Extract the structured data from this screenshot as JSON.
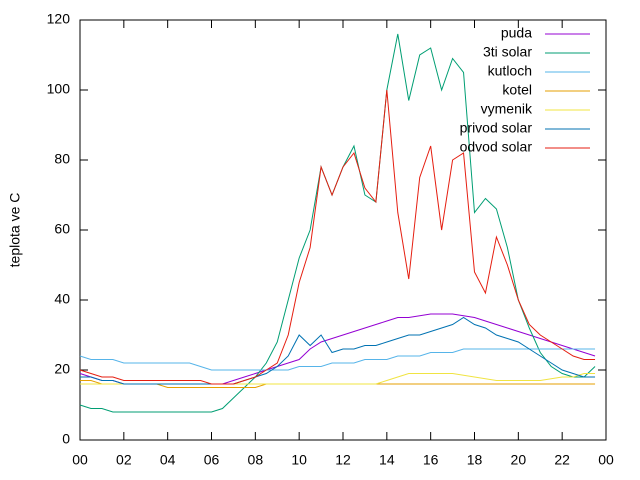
{
  "chart_data": {
    "type": "line",
    "ylabel": "teplota ve C",
    "x": [
      0,
      0.5,
      1,
      1.5,
      2,
      2.5,
      3,
      3.5,
      4,
      4.5,
      5,
      5.5,
      6,
      6.5,
      7,
      7.5,
      8,
      8.5,
      9,
      9.5,
      10,
      10.5,
      11,
      11.5,
      12,
      12.5,
      13,
      13.5,
      14,
      14.5,
      15,
      15.5,
      16,
      16.5,
      17,
      17.5,
      18,
      18.5,
      19,
      19.5,
      20,
      20.5,
      21,
      21.5,
      22,
      22.5,
      23,
      23.5
    ],
    "xlim": [
      0,
      24
    ],
    "xticks": [
      {
        "value": 0,
        "label": "00"
      },
      {
        "value": 2,
        "label": "02"
      },
      {
        "value": 4,
        "label": "04"
      },
      {
        "value": 6,
        "label": "06"
      },
      {
        "value": 8,
        "label": "08"
      },
      10,
      12,
      14,
      16,
      18,
      20,
      22,
      {
        "value": 24,
        "label": "00"
      }
    ],
    "ylim": [
      0,
      120
    ],
    "yticks": [
      0,
      20,
      40,
      60,
      80,
      100,
      120
    ],
    "legend": "top-right",
    "series": [
      {
        "name": "puda",
        "color": "#9400d3",
        "values": [
          19,
          18,
          17,
          17,
          16,
          16,
          16,
          16,
          16,
          16,
          16,
          16,
          16,
          16,
          17,
          18,
          19,
          20,
          21,
          22,
          23,
          26,
          28,
          29,
          30,
          31,
          32,
          33,
          34,
          35,
          35,
          35.5,
          36,
          36,
          36,
          35.5,
          35,
          34,
          33,
          32,
          31,
          30,
          29,
          28,
          27,
          26,
          25,
          24
        ]
      },
      {
        "name": "3ti solar",
        "color": "#009e73",
        "values": [
          10,
          9,
          9,
          8,
          8,
          8,
          8,
          8,
          8,
          8,
          8,
          8,
          8,
          9,
          12,
          15,
          18,
          22,
          28,
          40,
          52,
          60,
          78,
          70,
          78,
          84,
          70,
          68,
          100,
          116,
          97,
          110,
          112,
          100,
          109,
          105,
          65,
          69,
          66,
          55,
          40,
          32,
          25,
          21,
          19,
          18,
          18,
          21
        ]
      },
      {
        "name": "kutloch",
        "color": "#56b4e9",
        "values": [
          24,
          23,
          23,
          23,
          22,
          22,
          22,
          22,
          22,
          22,
          22,
          21,
          20,
          20,
          20,
          20,
          20,
          20,
          20,
          20,
          21,
          21,
          21,
          22,
          22,
          22,
          23,
          23,
          23,
          24,
          24,
          24,
          25,
          25,
          25,
          26,
          26,
          26,
          26,
          26,
          26,
          26,
          26,
          26,
          26,
          26,
          26,
          26
        ]
      },
      {
        "name": "kotel",
        "color": "#e69f00",
        "values": [
          17,
          17,
          16,
          16,
          16,
          16,
          16,
          16,
          15,
          15,
          15,
          15,
          15,
          15,
          15,
          15,
          15,
          16,
          16,
          16,
          16,
          16,
          16,
          16,
          16,
          16,
          16,
          16,
          16,
          16,
          16,
          16,
          16,
          16,
          16,
          16,
          16,
          16,
          16,
          16,
          16,
          16,
          16,
          16,
          16,
          16,
          16,
          16
        ]
      },
      {
        "name": "vymenik",
        "color": "#f0e442",
        "values": [
          16,
          16,
          16,
          16,
          16,
          16,
          16,
          16,
          16,
          16,
          16,
          16,
          16,
          16,
          16,
          16,
          16,
          16,
          16,
          16,
          16,
          16,
          16,
          16,
          16,
          16,
          16,
          16,
          17,
          18,
          19,
          19,
          19,
          19,
          19,
          18.5,
          18,
          17.5,
          17,
          17,
          17,
          17,
          17,
          17.5,
          18,
          18,
          19,
          19
        ]
      },
      {
        "name": "privod solar",
        "color": "#0072b2",
        "values": [
          18,
          18,
          17,
          17,
          16,
          16,
          16,
          16,
          16,
          16,
          16,
          16,
          16,
          16,
          16,
          17,
          18,
          19,
          21,
          24,
          30,
          27,
          30,
          25,
          26,
          26,
          27,
          27,
          28,
          29,
          30,
          30,
          31,
          32,
          33,
          35,
          33,
          32,
          30,
          29,
          28,
          26,
          24,
          22,
          20,
          19,
          18,
          18
        ]
      },
      {
        "name": "odvod solar",
        "color": "#e51e10",
        "values": [
          20,
          19,
          18,
          18,
          17,
          17,
          17,
          17,
          17,
          17,
          17,
          17,
          16,
          16,
          16,
          17,
          18,
          20,
          22,
          30,
          45,
          55,
          78,
          70,
          78,
          82,
          72,
          68,
          100,
          65,
          46,
          75,
          84,
          60,
          80,
          82,
          48,
          42,
          58,
          50,
          40,
          33,
          30,
          28,
          26,
          24,
          23,
          23
        ]
      }
    ]
  }
}
